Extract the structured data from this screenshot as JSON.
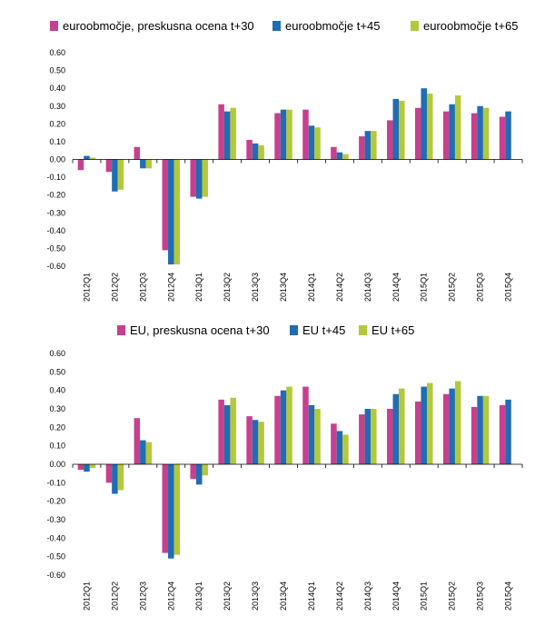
{
  "colors": {
    "pink": "#c7408f",
    "blue": "#1f6db3",
    "green": "#b4c93a"
  },
  "chart_data": [
    {
      "type": "bar",
      "title": "",
      "xlabel": "",
      "ylabel": "",
      "ylim": [
        -0.6,
        0.6
      ],
      "yticks": [
        "0.60",
        "0.50",
        "0.40",
        "0.30",
        "0.20",
        "0.10",
        "0.00",
        "-0.10",
        "-0.20",
        "-0.30",
        "-0.40",
        "-0.50",
        "-0.60"
      ],
      "grid": false,
      "legend_position": "top",
      "categories": [
        "2012Q1",
        "2012Q2",
        "2012Q3",
        "2012Q4",
        "2013Q1",
        "2013Q2",
        "2013Q3",
        "2013Q4",
        "2014Q1",
        "2014Q2",
        "2014Q3",
        "2014Q4",
        "2015Q1",
        "2015Q2",
        "2015Q3",
        "2015Q4"
      ],
      "series": [
        {
          "name": "euroobmočje, preskusna ocena t+30",
          "color": "pink",
          "values": [
            -0.06,
            -0.07,
            0.07,
            -0.51,
            -0.21,
            0.31,
            0.11,
            0.26,
            0.28,
            0.07,
            0.13,
            0.22,
            0.29,
            0.27,
            0.26,
            0.24
          ]
        },
        {
          "name": "euroobmočje t+45",
          "color": "blue",
          "values": [
            0.02,
            -0.18,
            -0.05,
            -0.59,
            -0.22,
            0.27,
            0.09,
            0.28,
            0.19,
            0.04,
            0.16,
            0.34,
            0.4,
            0.31,
            0.3,
            0.27
          ]
        },
        {
          "name": "euroobmočje t+65",
          "color": "green",
          "values": [
            0.01,
            -0.17,
            -0.05,
            -0.59,
            -0.21,
            0.29,
            0.08,
            0.28,
            0.18,
            0.03,
            0.16,
            0.33,
            0.37,
            0.36,
            0.29,
            null
          ]
        }
      ]
    },
    {
      "type": "bar",
      "title": "",
      "xlabel": "",
      "ylabel": "",
      "ylim": [
        -0.6,
        0.6
      ],
      "yticks": [
        "0.60",
        "0.50",
        "0.40",
        "0.30",
        "0.20",
        "0.10",
        "0.00",
        "-0.10",
        "-0.20",
        "-0.30",
        "-0.40",
        "-0.50",
        "-0.60"
      ],
      "grid": false,
      "legend_position": "top",
      "categories": [
        "2012Q1",
        "2012Q2",
        "2012Q3",
        "2012Q4",
        "2013Q1",
        "2013Q2",
        "2013Q3",
        "2013Q4",
        "2014Q1",
        "2014Q2",
        "2014Q3",
        "2014Q4",
        "2015Q1",
        "2015Q2",
        "2015Q3",
        "2015Q4"
      ],
      "series": [
        {
          "name": "EU, preskusna ocena t+30",
          "color": "pink",
          "values": [
            -0.03,
            -0.1,
            0.25,
            -0.48,
            -0.08,
            0.35,
            0.26,
            0.37,
            0.42,
            0.22,
            0.27,
            0.3,
            0.34,
            0.38,
            0.31,
            0.32
          ]
        },
        {
          "name": "EU t+45",
          "color": "blue",
          "values": [
            -0.04,
            -0.16,
            0.13,
            -0.51,
            -0.11,
            0.32,
            0.24,
            0.4,
            0.32,
            0.18,
            0.3,
            0.38,
            0.42,
            0.41,
            0.37,
            0.35
          ]
        },
        {
          "name": "EU t+65",
          "color": "green",
          "values": [
            -0.02,
            -0.14,
            0.12,
            -0.49,
            -0.06,
            0.36,
            0.23,
            0.42,
            0.3,
            0.16,
            0.3,
            0.41,
            0.44,
            0.45,
            0.37,
            null
          ]
        }
      ]
    }
  ]
}
